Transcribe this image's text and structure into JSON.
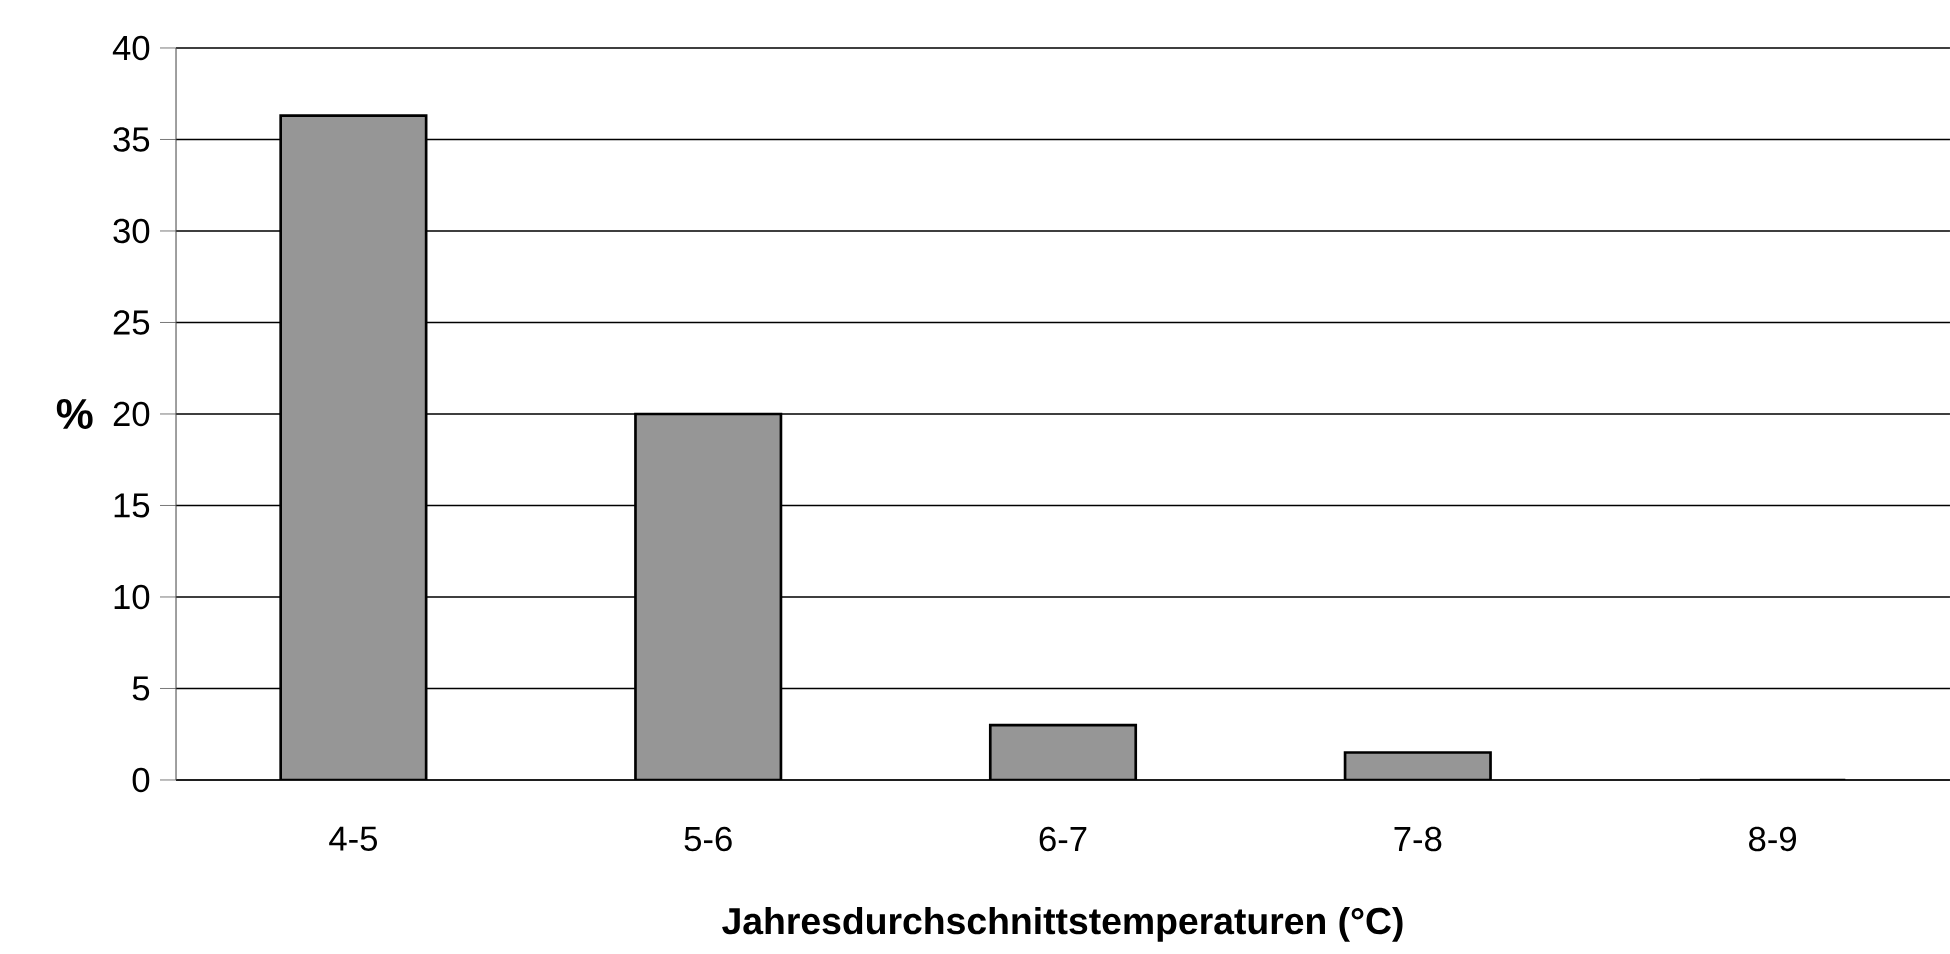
{
  "chart_data": {
    "type": "bar",
    "xlabel": "Jahresdurchschnittstemperaturen (°C)",
    "ylabel": "%",
    "categories": [
      "4-5",
      "5-6",
      "6-7",
      "7-8",
      "8-9"
    ],
    "values": [
      36.3,
      20,
      3,
      1.5,
      0
    ],
    "color": "#969696",
    "ylim": [
      0,
      40
    ],
    "yticks": [
      0,
      5,
      10,
      15,
      20,
      25,
      30,
      35,
      40
    ],
    "grid": "y"
  }
}
